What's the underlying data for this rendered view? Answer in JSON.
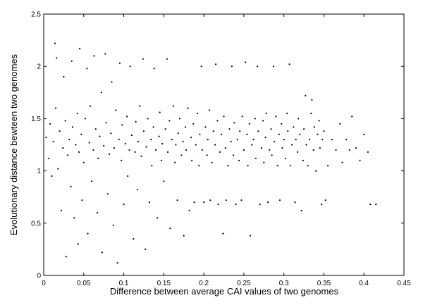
{
  "chart_data": {
    "type": "scatter",
    "title": "",
    "xlabel": "Difference between average CAI values of two genomes",
    "ylabel": "Evolutionary distance bewteen two genomes",
    "xlim": [
      0,
      0.45
    ],
    "ylim": [
      0,
      2.5
    ],
    "grid": false,
    "legend": "none",
    "point_color": "#000000",
    "x_ticks": [
      {
        "value": 0,
        "label": "0"
      },
      {
        "value": 0.05,
        "label": "0.05"
      },
      {
        "value": 0.1,
        "label": "0.1"
      },
      {
        "value": 0.15,
        "label": "0.15"
      },
      {
        "value": 0.2,
        "label": "0.2"
      },
      {
        "value": 0.25,
        "label": "0.25"
      },
      {
        "value": 0.3,
        "label": "0.3"
      },
      {
        "value": 0.35,
        "label": "0.35"
      },
      {
        "value": 0.4,
        "label": "0.4"
      },
      {
        "value": 0.45,
        "label": "0.45"
      }
    ],
    "y_ticks": [
      {
        "value": 0,
        "label": "0"
      },
      {
        "value": 0.5,
        "label": "0.5"
      },
      {
        "value": 1,
        "label": "1"
      },
      {
        "value": 1.5,
        "label": "1.5"
      },
      {
        "value": 2,
        "label": "2"
      },
      {
        "value": 2.5,
        "label": "2.5"
      }
    ],
    "series": [
      {
        "points": [
          [
            0.003,
            1.32
          ],
          [
            0.006,
            1.12
          ],
          [
            0.008,
            1.45
          ],
          [
            0.01,
            0.95
          ],
          [
            0.012,
            1.28
          ],
          [
            0.014,
            2.22
          ],
          [
            0.015,
            1.6
          ],
          [
            0.016,
            2.08
          ],
          [
            0.018,
            1.02
          ],
          [
            0.02,
            1.38
          ],
          [
            0.022,
            0.62
          ],
          [
            0.024,
            1.22
          ],
          [
            0.025,
            1.9
          ],
          [
            0.027,
            1.48
          ],
          [
            0.028,
            0.18
          ],
          [
            0.03,
            1.15
          ],
          [
            0.032,
            1.3
          ],
          [
            0.034,
            0.85
          ],
          [
            0.035,
            2.05
          ],
          [
            0.036,
            1.42
          ],
          [
            0.038,
            0.55
          ],
          [
            0.04,
            1.25
          ],
          [
            0.042,
            1.55
          ],
          [
            0.043,
            0.3
          ],
          [
            0.044,
            1.18
          ],
          [
            0.045,
            2.17
          ],
          [
            0.047,
            1.35
          ],
          [
            0.048,
            0.72
          ],
          [
            0.05,
            1.08
          ],
          [
            0.052,
            1.5
          ],
          [
            0.054,
            1.98
          ],
          [
            0.055,
            0.4
          ],
          [
            0.057,
            1.27
          ],
          [
            0.058,
            1.62
          ],
          [
            0.06,
            0.9
          ],
          [
            0.062,
            1.2
          ],
          [
            0.063,
            2.1
          ],
          [
            0.065,
            1.4
          ],
          [
            0.067,
            0.6
          ],
          [
            0.068,
            1.12
          ],
          [
            0.07,
            1.33
          ],
          [
            0.072,
            1.75
          ],
          [
            0.073,
            0.22
          ],
          [
            0.075,
            1.24
          ],
          [
            0.077,
            2.12
          ],
          [
            0.078,
            1.46
          ],
          [
            0.08,
            0.78
          ],
          [
            0.082,
            1.16
          ],
          [
            0.084,
            1.36
          ],
          [
            0.085,
            1.85
          ],
          [
            0.087,
            0.48
          ],
          [
            0.088,
            1.22
          ],
          [
            0.09,
            1.58
          ],
          [
            0.092,
            0.12
          ],
          [
            0.094,
            1.3
          ],
          [
            0.095,
            2.03
          ],
          [
            0.097,
            1.1
          ],
          [
            0.098,
            1.44
          ],
          [
            0.1,
            0.68
          ],
          [
            0.102,
            1.26
          ],
          [
            0.104,
            1.52
          ],
          [
            0.105,
            0.95
          ],
          [
            0.107,
            1.2
          ],
          [
            0.108,
            2.0
          ],
          [
            0.11,
            1.34
          ],
          [
            0.112,
            0.35
          ],
          [
            0.114,
            1.18
          ],
          [
            0.115,
            1.47
          ],
          [
            0.117,
            0.82
          ],
          [
            0.118,
            1.28
          ],
          [
            0.12,
            1.62
          ],
          [
            0.122,
            1.14
          ],
          [
            0.124,
            2.07
          ],
          [
            0.125,
            1.38
          ],
          [
            0.127,
            0.25
          ],
          [
            0.128,
            1.23
          ],
          [
            0.13,
            1.5
          ],
          [
            0.132,
            0.7
          ],
          [
            0.134,
            1.3
          ],
          [
            0.135,
            1.05
          ],
          [
            0.137,
            1.42
          ],
          [
            0.138,
            1.98
          ],
          [
            0.14,
            1.2
          ],
          [
            0.142,
            0.55
          ],
          [
            0.144,
            1.33
          ],
          [
            0.145,
            1.56
          ],
          [
            0.147,
            1.1
          ],
          [
            0.148,
            1.26
          ],
          [
            0.15,
            0.9
          ],
          [
            0.152,
            1.4
          ],
          [
            0.154,
            2.07
          ],
          [
            0.155,
            1.18
          ],
          [
            0.157,
            1.48
          ],
          [
            0.158,
            0.45
          ],
          [
            0.16,
            1.3
          ],
          [
            0.162,
            1.62
          ],
          [
            0.164,
            1.08
          ],
          [
            0.165,
            1.25
          ],
          [
            0.167,
            0.72
          ],
          [
            0.168,
            1.36
          ],
          [
            0.17,
            1.5
          ],
          [
            0.172,
            1.15
          ],
          [
            0.174,
            1.28
          ],
          [
            0.175,
            0.38
          ],
          [
            0.177,
            1.42
          ],
          [
            0.178,
            1.2
          ],
          [
            0.18,
            1.6
          ],
          [
            0.182,
            0.62
          ],
          [
            0.184,
            1.32
          ],
          [
            0.185,
            1.1
          ],
          [
            0.187,
            1.45
          ],
          [
            0.188,
            0.7
          ],
          [
            0.19,
            1.25
          ],
          [
            0.192,
            1.55
          ],
          [
            0.194,
            1.05
          ],
          [
            0.195,
            1.35
          ],
          [
            0.197,
            2.0
          ],
          [
            0.198,
            1.2
          ],
          [
            0.2,
            0.7
          ],
          [
            0.202,
            1.42
          ],
          [
            0.204,
            1.15
          ],
          [
            0.205,
            1.3
          ],
          [
            0.207,
            1.58
          ],
          [
            0.208,
            0.72
          ],
          [
            0.21,
            1.08
          ],
          [
            0.212,
            1.38
          ],
          [
            0.214,
            1.25
          ],
          [
            0.215,
            2.02
          ],
          [
            0.217,
            1.48
          ],
          [
            0.218,
            0.68
          ],
          [
            0.22,
            1.18
          ],
          [
            0.222,
            1.35
          ],
          [
            0.224,
            0.4
          ],
          [
            0.225,
            1.52
          ],
          [
            0.227,
            1.22
          ],
          [
            0.228,
            0.72
          ],
          [
            0.23,
            1.05
          ],
          [
            0.232,
            1.4
          ],
          [
            0.234,
            1.28
          ],
          [
            0.235,
            2.0
          ],
          [
            0.237,
            1.15
          ],
          [
            0.238,
            1.46
          ],
          [
            0.24,
            0.68
          ],
          [
            0.242,
            1.3
          ],
          [
            0.244,
            1.1
          ],
          [
            0.245,
            1.38
          ],
          [
            0.247,
            0.72
          ],
          [
            0.248,
            1.52
          ],
          [
            0.25,
            1.2
          ],
          [
            0.252,
            2.04
          ],
          [
            0.254,
            1.35
          ],
          [
            0.255,
            1.05
          ],
          [
            0.257,
            1.45
          ],
          [
            0.258,
            0.38
          ],
          [
            0.26,
            1.25
          ],
          [
            0.262,
            1.3
          ],
          [
            0.264,
            1.5
          ],
          [
            0.265,
            1.12
          ],
          [
            0.267,
            2.0
          ],
          [
            0.268,
            1.38
          ],
          [
            0.27,
            0.68
          ],
          [
            0.272,
            1.22
          ],
          [
            0.274,
            1.48
          ],
          [
            0.275,
            1.08
          ],
          [
            0.277,
            1.32
          ],
          [
            0.278,
            1.55
          ],
          [
            0.28,
            0.7
          ],
          [
            0.282,
            1.2
          ],
          [
            0.284,
            1.4
          ],
          [
            0.285,
            1.15
          ],
          [
            0.287,
            2.0
          ],
          [
            0.288,
            1.28
          ],
          [
            0.29,
            1.52
          ],
          [
            0.292,
            1.05
          ],
          [
            0.294,
            1.35
          ],
          [
            0.295,
            0.72
          ],
          [
            0.297,
            1.45
          ],
          [
            0.298,
            1.22
          ],
          [
            0.3,
            1.3
          ],
          [
            0.302,
            1.12
          ],
          [
            0.304,
            1.55
          ],
          [
            0.305,
            1.38
          ],
          [
            0.307,
            2.02
          ],
          [
            0.308,
            1.05
          ],
          [
            0.31,
            1.25
          ],
          [
            0.312,
            1.42
          ],
          [
            0.314,
            0.7
          ],
          [
            0.315,
            1.3
          ],
          [
            0.317,
            1.18
          ],
          [
            0.318,
            1.5
          ],
          [
            0.32,
            1.35
          ],
          [
            0.322,
            0.62
          ],
          [
            0.324,
            1.1
          ],
          [
            0.325,
            1.4
          ],
          [
            0.327,
            1.72
          ],
          [
            0.328,
            1.25
          ],
          [
            0.33,
            1.05
          ],
          [
            0.332,
            1.3
          ],
          [
            0.334,
            1.55
          ],
          [
            0.335,
            1.68
          ],
          [
            0.337,
            1.2
          ],
          [
            0.338,
            1.42
          ],
          [
            0.34,
            1.0
          ],
          [
            0.342,
            1.35
          ],
          [
            0.344,
            1.48
          ],
          [
            0.345,
            1.22
          ],
          [
            0.347,
            0.68
          ],
          [
            0.348,
            1.3
          ],
          [
            0.35,
            1.38
          ],
          [
            0.352,
            0.72
          ],
          [
            0.355,
            1.05
          ],
          [
            0.36,
            1.3
          ],
          [
            0.365,
            1.2
          ],
          [
            0.37,
            1.45
          ],
          [
            0.373,
            1.08
          ],
          [
            0.378,
            1.3
          ],
          [
            0.382,
            1.2
          ],
          [
            0.385,
            1.52
          ],
          [
            0.39,
            1.22
          ],
          [
            0.395,
            1.1
          ],
          [
            0.4,
            1.35
          ],
          [
            0.405,
            1.18
          ],
          [
            0.408,
            0.68
          ],
          [
            0.415,
            0.68
          ]
        ]
      }
    ]
  }
}
